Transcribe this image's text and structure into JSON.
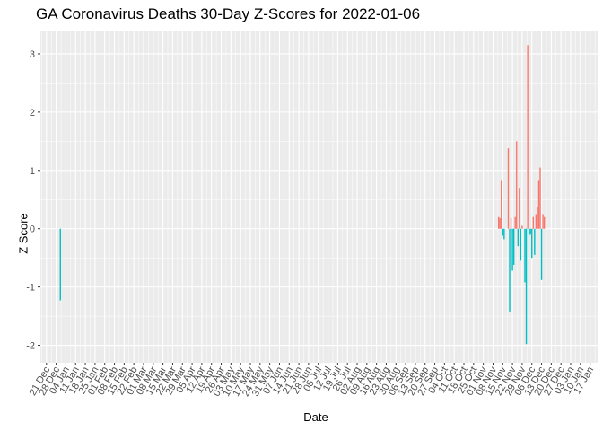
{
  "chart_data": {
    "type": "bar",
    "title": "GA Coronavirus Deaths 30-Day Z-Scores for 2022-01-06",
    "xlabel": "Date",
    "ylabel": "Z Score",
    "ylim": [
      -2.3,
      3.4
    ],
    "yticks": [
      -2,
      -1,
      0,
      1,
      2,
      3
    ],
    "grid": true,
    "legend": "none",
    "colors": {
      "positive": "#F8766D",
      "negative": "#00BFC4",
      "panel": "#EBEBEB",
      "grid": "#FFFFFF"
    },
    "xticks": [
      "21 Dec",
      "28 Dec",
      "04 Jan",
      "11 Jan",
      "18 Jan",
      "25 Jan",
      "01 Feb",
      "08 Feb",
      "15 Feb",
      "22 Feb",
      "01 Mar",
      "08 Mar",
      "15 Mar",
      "22 Mar",
      "29 Mar",
      "05 Apr",
      "12 Apr",
      "19 Apr",
      "26 Apr",
      "03 May",
      "10 May",
      "17 May",
      "24 May",
      "31 May",
      "07 Jun",
      "14 Jun",
      "21 Jun",
      "28 Jun",
      "05 Jul",
      "12 Jul",
      "19 Jul",
      "26 Jul",
      "02 Aug",
      "09 Aug",
      "16 Aug",
      "23 Aug",
      "30 Aug",
      "06 Sep",
      "13 Sep",
      "20 Sep",
      "27 Sep",
      "04 Oct",
      "11 Oct",
      "18 Oct",
      "25 Oct",
      "01 Nov",
      "08 Nov",
      "15 Nov",
      "22 Nov",
      "29 Nov",
      "06 Dec",
      "13 Dec",
      "20 Dec",
      "27 Dec",
      "03 Jan",
      "10 Jan",
      "17 Jan"
    ],
    "bars": [
      {
        "day": 10,
        "value": -1.23
      },
      {
        "day": 326,
        "value": 0.2
      },
      {
        "day": 327,
        "value": 0.18
      },
      {
        "day": 328,
        "value": 0.82
      },
      {
        "day": 329,
        "value": -0.12
      },
      {
        "day": 330,
        "value": -0.18
      },
      {
        "day": 333,
        "value": 1.38
      },
      {
        "day": 334,
        "value": -1.42
      },
      {
        "day": 335,
        "value": 0.18
      },
      {
        "day": 336,
        "value": -0.72
      },
      {
        "day": 337,
        "value": -0.62
      },
      {
        "day": 338,
        "value": 0.2
      },
      {
        "day": 339,
        "value": 1.5
      },
      {
        "day": 340,
        "value": -0.3
      },
      {
        "day": 341,
        "value": 0.7
      },
      {
        "day": 342,
        "value": -0.55
      },
      {
        "day": 343,
        "value": 0.05
      },
      {
        "day": 345,
        "value": -0.92
      },
      {
        "day": 346,
        "value": -1.98
      },
      {
        "day": 347,
        "value": 3.15
      },
      {
        "day": 348,
        "value": -0.12
      },
      {
        "day": 349,
        "value": -0.1
      },
      {
        "day": 350,
        "value": -0.5
      },
      {
        "day": 351,
        "value": 0.2
      },
      {
        "day": 352,
        "value": -0.45
      },
      {
        "day": 353,
        "value": 0.25
      },
      {
        "day": 354,
        "value": 0.38
      },
      {
        "day": 355,
        "value": 0.82
      },
      {
        "day": 356,
        "value": 1.05
      },
      {
        "day": 357,
        "value": -0.88
      },
      {
        "day": 358,
        "value": 0.25
      },
      {
        "day": 359,
        "value": 0.2
      }
    ]
  }
}
